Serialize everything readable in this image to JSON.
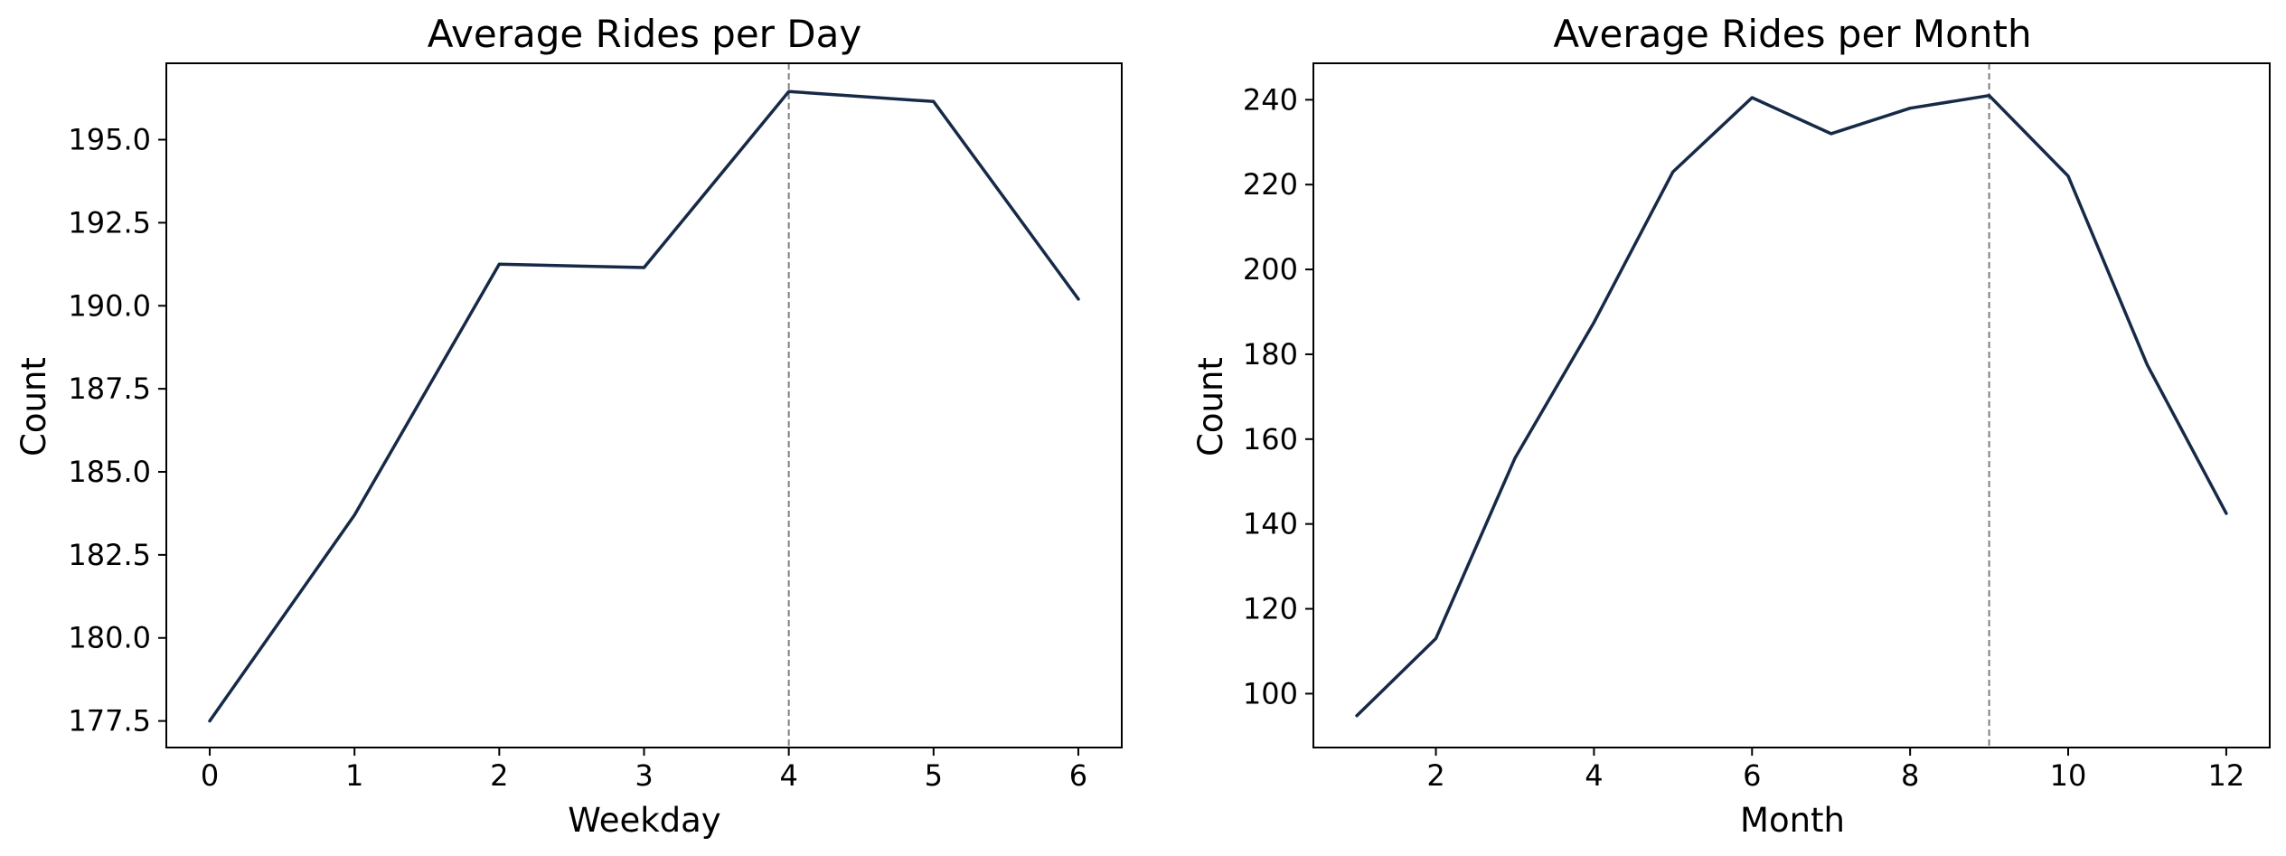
{
  "colors": {
    "line": "#162a47",
    "reference_line": "#7f7f7f"
  },
  "chart_data": [
    {
      "type": "line",
      "title": "Average Rides per Day",
      "xlabel": "Weekday",
      "ylabel": "Count",
      "x": [
        0,
        1,
        2,
        3,
        4,
        5,
        6
      ],
      "series": [
        {
          "values": [
            177.5,
            183.7,
            191.25,
            191.15,
            196.45,
            196.15,
            190.2
          ]
        }
      ],
      "xlim": [
        -0.3,
        6.3
      ],
      "ylim": [
        176.7,
        197.3
      ],
      "xticks": [
        0,
        1,
        2,
        3,
        4,
        5,
        6
      ],
      "xtick_labels": [
        "0",
        "1",
        "2",
        "3",
        "4",
        "5",
        "6"
      ],
      "yticks": [
        177.5,
        180.0,
        182.5,
        185.0,
        187.5,
        190.0,
        192.5,
        195.0
      ],
      "ytick_labels": [
        "177.5",
        "180.0",
        "182.5",
        "185.0",
        "187.5",
        "190.0",
        "192.5",
        "195.0"
      ],
      "reference_line": {
        "axis": "x",
        "value": 4,
        "style": "dashed"
      },
      "grid": false,
      "legend": "none"
    },
    {
      "type": "line",
      "title": "Average Rides per Month",
      "xlabel": "Month",
      "ylabel": "Count",
      "x": [
        1,
        2,
        3,
        4,
        5,
        6,
        7,
        8,
        9,
        10,
        11,
        12
      ],
      "series": [
        {
          "values": [
            94.8,
            113.0,
            155.5,
            187.5,
            223.0,
            240.5,
            232.0,
            238.0,
            241.0,
            222.0,
            177.5,
            142.5
          ]
        }
      ],
      "xlim": [
        0.45,
        12.55
      ],
      "ylim": [
        87.3,
        248.6
      ],
      "xticks": [
        2,
        4,
        6,
        8,
        10,
        12
      ],
      "xtick_labels": [
        "2",
        "4",
        "6",
        "8",
        "10",
        "12"
      ],
      "yticks": [
        100,
        120,
        140,
        160,
        180,
        200,
        220,
        240
      ],
      "ytick_labels": [
        "100",
        "120",
        "140",
        "160",
        "180",
        "200",
        "220",
        "240"
      ],
      "reference_line": {
        "axis": "x",
        "value": 9,
        "style": "dashed"
      },
      "grid": false,
      "legend": "none"
    }
  ]
}
